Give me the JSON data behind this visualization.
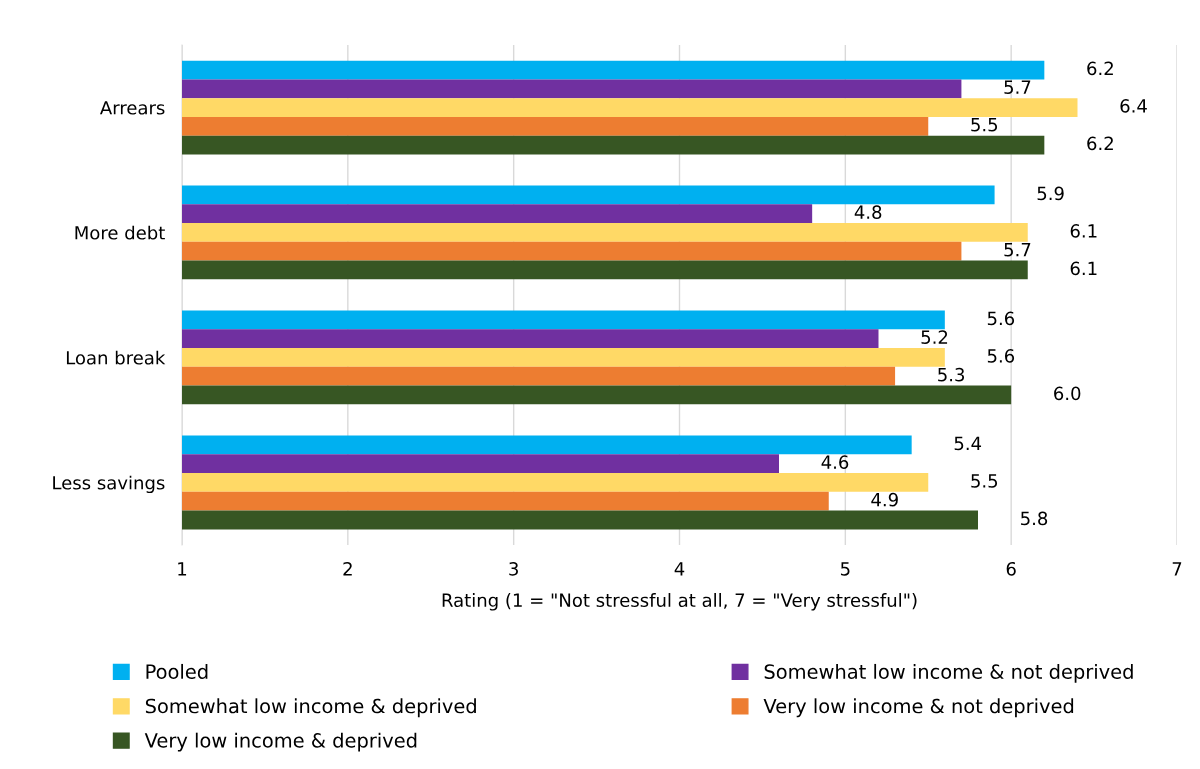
{
  "chart_data": {
    "type": "bar",
    "orientation": "horizontal",
    "xlabel": "Rating (1 = \"Not stressful at all, 7 = \"Very stressful\")",
    "categories": [
      "Arrears",
      "More debt",
      "Loan break",
      "Less savings"
    ],
    "series": [
      {
        "name": "Pooled",
        "color": "#00b0f0",
        "values": [
          6.2,
          5.9,
          5.6,
          5.4
        ],
        "value_labels": [
          "6.2",
          "5.9",
          "5.6",
          "5.4"
        ]
      },
      {
        "name": "Somewhat low income & not deprived",
        "color": "#7030a0",
        "values": [
          5.7,
          4.8,
          5.2,
          4.6
        ],
        "value_labels": [
          "5.7",
          "4.8",
          "5.2",
          "4.6"
        ]
      },
      {
        "name": "Somewhat low income & deprived",
        "color": "#ffd966",
        "values": [
          6.4,
          6.1,
          5.6,
          5.5
        ],
        "value_labels": [
          "6.4",
          "6.1",
          "5.6",
          "5.5"
        ]
      },
      {
        "name": "Very low income & not deprived",
        "color": "#ed7d31",
        "values": [
          5.5,
          5.7,
          5.3,
          4.9
        ],
        "value_labels": [
          "5.5",
          "5.7",
          "5.3",
          "4.9"
        ]
      },
      {
        "name": "Very low income & deprived",
        "color": "#375623",
        "values": [
          6.2,
          6.1,
          6.0,
          5.8
        ],
        "value_labels": [
          "6.2",
          "6.1",
          "6.0",
          "5.8"
        ]
      }
    ],
    "xlim": [
      1,
      7
    ],
    "xticks": [
      1,
      2,
      3,
      4,
      5,
      6,
      7
    ],
    "grid": "x",
    "legend": "bottom"
  }
}
